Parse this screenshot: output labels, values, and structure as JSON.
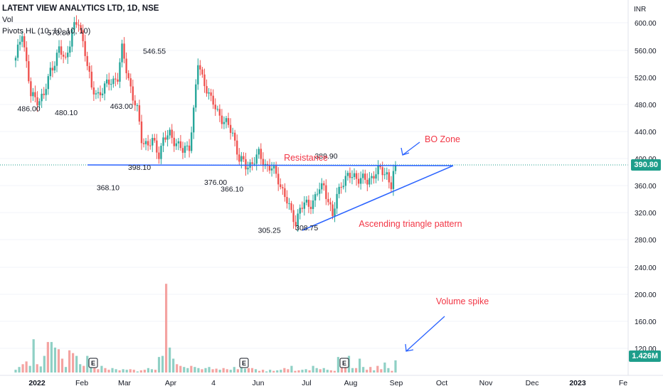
{
  "header": {
    "title": "LATENT VIEW ANALYTICS LTD, 1D, NSE",
    "vol_label": "Vol",
    "pivots_label": "Pivots HL (10, 10, 10, 10)"
  },
  "currency": "INR",
  "last_price": {
    "label": "390.80",
    "color": "#1e9e8b"
  },
  "last_volume": {
    "label": "1.426M",
    "color": "#1e9e8b"
  },
  "colors": {
    "up": "#26a69a",
    "down": "#ef5350",
    "annotation": "#2962ff",
    "pivot_text": "#131722",
    "annotation_text": "#f23645"
  },
  "chart_data": {
    "type": "candlestick",
    "y_axis": {
      "ticks": [
        "600.00",
        "560.00",
        "520.00",
        "480.00",
        "440.00",
        "400.00",
        "360.00",
        "320.00",
        "280.00",
        "240.00",
        "200.00",
        "160.00",
        "120.00"
      ]
    },
    "x_axis": {
      "ticks": [
        "2022",
        "Feb",
        "Mar",
        "Apr",
        "4",
        "Jun",
        "Jul",
        "Aug",
        "Sep",
        "Oct",
        "Nov",
        "Dec",
        "2023",
        "Fe"
      ]
    },
    "pivots": [
      {
        "label": "573.80",
        "date": "2022-01-27",
        "value": 573.8
      },
      {
        "label": "486.00",
        "date": "2022-01-07",
        "value": 486.0
      },
      {
        "label": "480.10",
        "date": "2022-02-01",
        "value": 480.1
      },
      {
        "label": "546.55",
        "date": "2022-04-01",
        "value": 546.55
      },
      {
        "label": "463.00",
        "date": "2022-03-10",
        "value": 463.0
      },
      {
        "label": "368.10",
        "date": "2022-03-01",
        "value": 368.1
      },
      {
        "label": "398.10",
        "date": "2022-03-22",
        "value": 398.1
      },
      {
        "label": "376.00",
        "date": "2022-05-12",
        "value": 376.0
      },
      {
        "label": "366.10",
        "date": "2022-05-23",
        "value": 366.1
      },
      {
        "label": "389.90",
        "date": "2022-07-25",
        "value": 389.9
      },
      {
        "label": "305.25",
        "date": "2022-06-17",
        "value": 305.25
      },
      {
        "label": "308.75",
        "date": "2022-07-12",
        "value": 308.75
      }
    ],
    "annotations": [
      {
        "text": "Resistance"
      },
      {
        "text": "BO Zone"
      },
      {
        "text": "Ascending triangle pattern"
      },
      {
        "text": "Volume spike"
      }
    ],
    "event_markers": [
      "E",
      "E",
      "E"
    ],
    "price_path": [
      [
        0,
        545
      ],
      [
        3,
        590
      ],
      [
        5,
        540
      ],
      [
        7,
        492
      ],
      [
        10,
        488
      ],
      [
        13,
        492
      ],
      [
        16,
        530
      ],
      [
        20,
        560
      ],
      [
        23,
        545
      ],
      [
        26,
        590
      ],
      [
        29,
        600
      ],
      [
        32,
        560
      ],
      [
        35,
        500
      ],
      [
        38,
        496
      ],
      [
        41,
        505
      ],
      [
        44,
        515
      ],
      [
        47,
        520
      ],
      [
        49,
        560
      ],
      [
        52,
        520
      ],
      [
        54,
        490
      ],
      [
        56,
        470
      ],
      [
        58,
        430
      ],
      [
        61,
        420
      ],
      [
        63,
        425
      ],
      [
        66,
        408
      ],
      [
        68,
        428
      ],
      [
        71,
        435
      ],
      [
        74,
        425
      ],
      [
        77,
        410
      ],
      [
        80,
        420
      ],
      [
        82,
        470
      ],
      [
        84,
        540
      ],
      [
        86,
        520
      ],
      [
        88,
        505
      ],
      [
        90,
        485
      ],
      [
        93,
        470
      ],
      [
        96,
        455
      ],
      [
        100,
        438
      ],
      [
        103,
        400
      ],
      [
        106,
        388
      ],
      [
        109,
        395
      ],
      [
        112,
        405
      ],
      [
        115,
        392
      ],
      [
        118,
        385
      ],
      [
        121,
        370
      ],
      [
        124,
        345
      ],
      [
        127,
        318
      ],
      [
        129,
        308
      ],
      [
        131,
        325
      ],
      [
        133,
        332
      ],
      [
        135,
        332
      ],
      [
        138,
        342
      ],
      [
        140,
        355
      ],
      [
        142,
        360
      ],
      [
        144,
        340
      ],
      [
        146,
        312
      ],
      [
        148,
        345
      ],
      [
        150,
        365
      ],
      [
        153,
        372
      ],
      [
        156,
        375
      ],
      [
        159,
        370
      ],
      [
        162,
        366
      ],
      [
        165,
        378
      ],
      [
        168,
        382
      ],
      [
        171,
        378
      ],
      [
        173,
        360
      ],
      [
        175,
        390.8
      ]
    ],
    "volume_levels": [
      5,
      10,
      15,
      20,
      12,
      60,
      15,
      11,
      30,
      55,
      55,
      45,
      42,
      25,
      10,
      40,
      35,
      30,
      15,
      12,
      30,
      10,
      8,
      6,
      12,
      8,
      5,
      8,
      6,
      4,
      6,
      5,
      6,
      5,
      2,
      4,
      5,
      8,
      6,
      5,
      28,
      30,
      160,
      45,
      25,
      15,
      12,
      10,
      8,
      12,
      10,
      8,
      6,
      8,
      10,
      6,
      7,
      5,
      8,
      6,
      5,
      10,
      6,
      12,
      7,
      8,
      8,
      6,
      3,
      5,
      2,
      5,
      3,
      4,
      5,
      8,
      6,
      12,
      3,
      4,
      5,
      6,
      4,
      12,
      8,
      6,
      8,
      5,
      4,
      3,
      28,
      12,
      16,
      30,
      8,
      8,
      25,
      10,
      5,
      10,
      4,
      12,
      6,
      18,
      8,
      3,
      22
    ],
    "last_price": 390.8
  }
}
